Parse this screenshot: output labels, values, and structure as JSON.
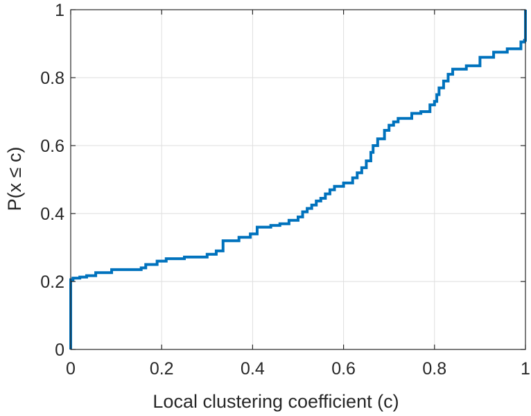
{
  "chart_data": {
    "type": "line",
    "title": "",
    "xlabel": "Local clustering coefficient (c)",
    "ylabel": "P(x ≤ c)",
    "xlim": [
      0,
      1
    ],
    "ylim": [
      0,
      1
    ],
    "xticks": [
      0,
      0.2,
      0.4,
      0.6,
      0.8,
      1
    ],
    "yticks": [
      0,
      0.2,
      0.4,
      0.6,
      0.8,
      1
    ],
    "xtick_labels": [
      "0",
      "0.2",
      "0.4",
      "0.6",
      "0.8",
      "1"
    ],
    "ytick_labels": [
      "0",
      "0.2",
      "0.4",
      "0.6",
      "0.8",
      "1"
    ],
    "grid": true,
    "box": true,
    "step": true,
    "series": [
      {
        "color": "#0072BD",
        "x": [
          0,
          0,
          0.005,
          0.02,
          0.035,
          0.055,
          0.09,
          0.155,
          0.165,
          0.19,
          0.21,
          0.25,
          0.3,
          0.32,
          0.335,
          0.37,
          0.395,
          0.41,
          0.44,
          0.46,
          0.48,
          0.5,
          0.51,
          0.52,
          0.53,
          0.54,
          0.55,
          0.56,
          0.57,
          0.58,
          0.6,
          0.62,
          0.63,
          0.64,
          0.65,
          0.66,
          0.665,
          0.675,
          0.69,
          0.7,
          0.71,
          0.72,
          0.75,
          0.77,
          0.79,
          0.8,
          0.805,
          0.81,
          0.82,
          0.83,
          0.84,
          0.87,
          0.9,
          0.93,
          0.96,
          0.99,
          0.998,
          1
        ],
        "y": [
          0,
          0.205,
          0.21,
          0.213,
          0.217,
          0.226,
          0.235,
          0.24,
          0.25,
          0.26,
          0.267,
          0.272,
          0.28,
          0.29,
          0.32,
          0.33,
          0.34,
          0.36,
          0.365,
          0.37,
          0.38,
          0.39,
          0.405,
          0.415,
          0.425,
          0.437,
          0.445,
          0.458,
          0.47,
          0.48,
          0.49,
          0.505,
          0.52,
          0.535,
          0.555,
          0.58,
          0.6,
          0.62,
          0.645,
          0.66,
          0.67,
          0.68,
          0.695,
          0.7,
          0.72,
          0.73,
          0.75,
          0.77,
          0.79,
          0.81,
          0.825,
          0.835,
          0.86,
          0.875,
          0.885,
          0.905,
          0.91,
          1
        ]
      }
    ]
  }
}
